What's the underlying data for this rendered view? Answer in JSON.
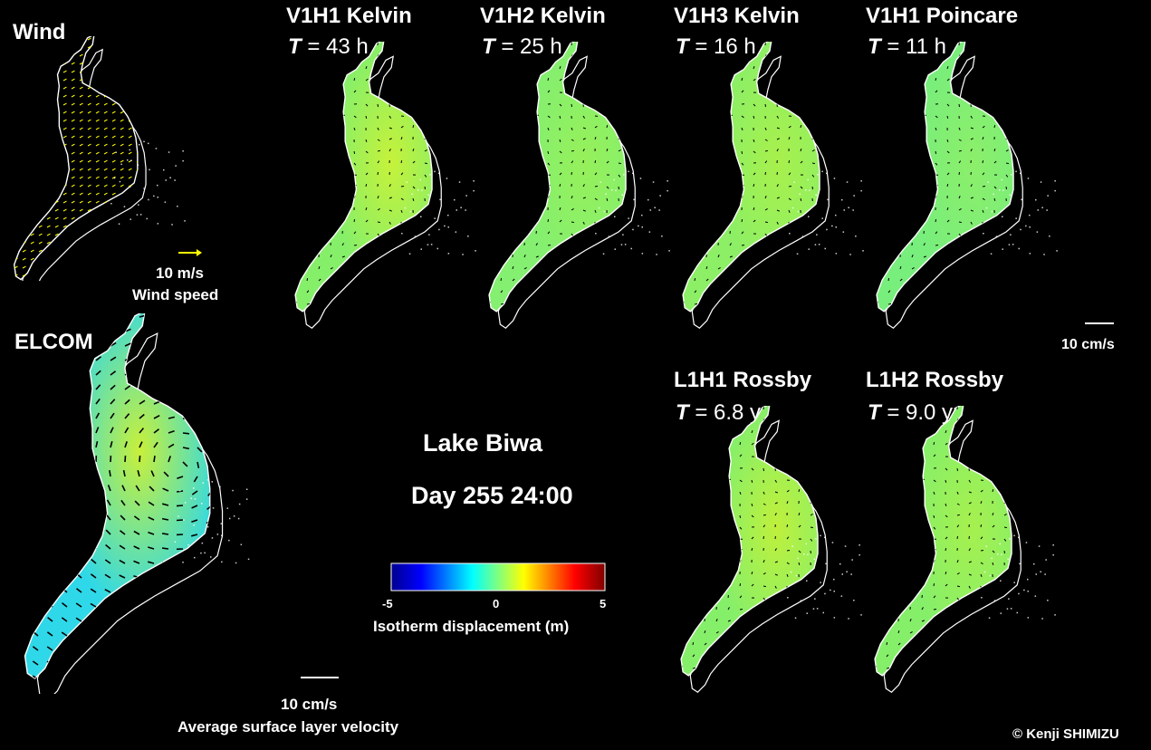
{
  "labels": {
    "wind_title": "Wind",
    "wind_ref_speed": "10 m/s",
    "wind_ref_label": "Wind speed",
    "elcom_title": "ELCOM",
    "center_title": "Lake Biwa",
    "center_time": "Day 255 24:00",
    "vel_ref_small": "10 cm/s",
    "vel_ref_bottom": "10 cm/s",
    "vel_ref_caption": "Average surface layer velocity",
    "credit": "© Kenji SHIMIZU"
  },
  "colorbar": {
    "ticks": [
      "-5",
      "0",
      "5"
    ],
    "label": "Isotherm displacement (m)",
    "stops": [
      "#00008f",
      "#0000ff",
      "#00ffff",
      "#ffff00",
      "#ff0000",
      "#800000"
    ]
  },
  "modes": [
    {
      "title": "V1H1 Kelvin",
      "var": "T",
      "value": "= 43 h",
      "tint": "#86ef6a",
      "hot": "#c6f23a"
    },
    {
      "title": "V1H2 Kelvin",
      "var": "T",
      "value": "= 25 h",
      "tint": "#84ef70",
      "hot": "#96f05a"
    },
    {
      "title": "V1H3 Kelvin",
      "var": "T",
      "value": "= 16 h",
      "tint": "#8cef66",
      "hot": "#a8f04c"
    },
    {
      "title": "V1H1 Poincare",
      "var": "T",
      "value": "= 11 h",
      "tint": "#78ee7c",
      "hot": "#8cef6a"
    },
    {
      "title": "L1H1 Rossby",
      "var": "T",
      "value": "= 6.8 yr",
      "tint": "#86ef6a",
      "hot": "#bff03c"
    },
    {
      "title": "L1H2 Rossby",
      "var": "T",
      "value": "= 9.0 yr",
      "tint": "#86ef6a",
      "hot": "#a6f04e"
    }
  ],
  "colors": {
    "background": "#000000",
    "outline": "#ffffff",
    "wind_arrows": "#ffff00"
  }
}
